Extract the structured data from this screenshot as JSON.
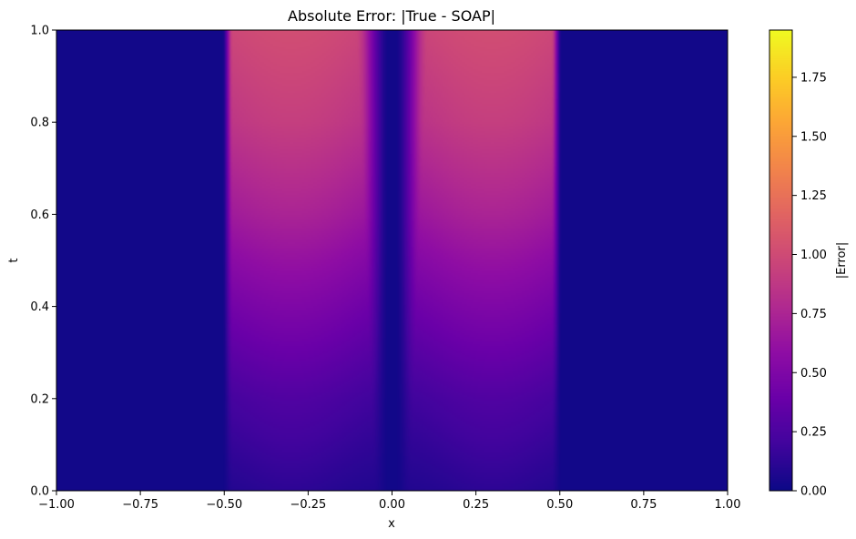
{
  "chart_data": {
    "type": "heatmap",
    "title": "Absolute Error: |True - SOAP|",
    "xlabel": "x",
    "ylabel": "t",
    "xlim": [
      -1.0,
      1.0
    ],
    "ylim": [
      0.0,
      1.0
    ],
    "x_ticks": [
      "−1.00",
      "−0.75",
      "−0.50",
      "−0.25",
      "0.00",
      "0.25",
      "0.50",
      "0.75",
      "1.00"
    ],
    "y_ticks": [
      "0.0",
      "0.2",
      "0.4",
      "0.6",
      "0.8",
      "1.0"
    ],
    "colormap": "plasma",
    "colorbar": {
      "label": "|Error|",
      "range": [
        0.0,
        1.95
      ],
      "ticks": [
        "0.00",
        "0.25",
        "0.50",
        "0.75",
        "1.00",
        "1.25",
        "1.50",
        "1.75"
      ]
    },
    "field_description": "Error near 0 for |x| > 0.5 and near x = 0; two lobes on -0.5<x<0 and 0<x<0.5 grow with t to about 1.0 at t = 1",
    "profile": {
      "t": [
        0.0,
        0.2,
        0.4,
        0.6,
        0.8,
        1.0
      ],
      "lobe_peak_error": [
        0.1,
        0.25,
        0.48,
        0.72,
        0.9,
        1.0
      ]
    },
    "lobes": [
      {
        "x_range": [
          -0.5,
          0.0
        ]
      },
      {
        "x_range": [
          0.0,
          0.5
        ]
      }
    ]
  }
}
